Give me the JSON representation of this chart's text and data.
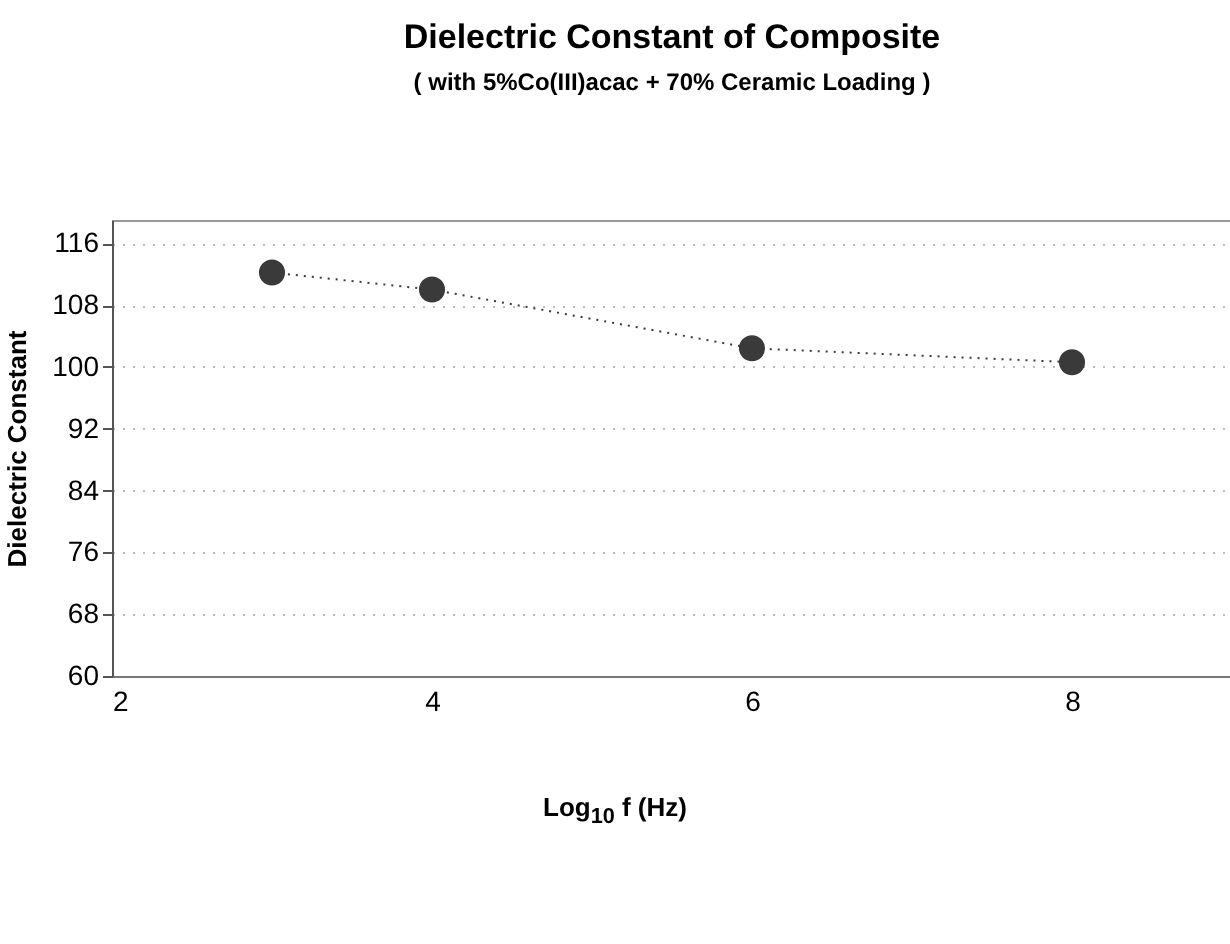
{
  "chart_data": {
    "type": "line",
    "title": "Dielectric Constant of Composite",
    "subtitle": "( with 5%Co(III)acac + 70% Ceramic Loading )",
    "xlabel": "Log$_{10}$ f (Hz)",
    "ylabel": "Dielectric Constant",
    "x": [
      3,
      4,
      6,
      8
    ],
    "series": [
      {
        "color": "#3a3a3a",
        "values": [
          112.2,
          110,
          102.4,
          100.6
        ]
      }
    ],
    "xlim": [
      2,
      9
    ],
    "xticks": [
      2,
      4,
      6,
      8
    ],
    "ylim": [
      60,
      119
    ],
    "yticks": [
      60,
      68,
      76,
      84,
      92,
      100,
      108,
      116
    ],
    "grid": "y",
    "marker": "circle",
    "line_style": "dotted"
  }
}
